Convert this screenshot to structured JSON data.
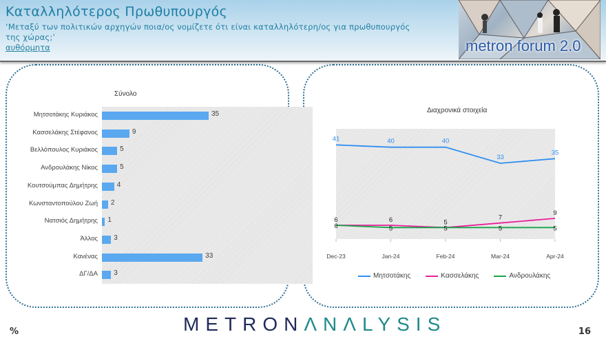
{
  "header": {
    "title": "Καταλληλότερος Πρωθυπουργός",
    "subtitle": "‘Μεταξύ των πολιτικών αρχηγών ποια/ος νομίζετε ότι είναι καταλληλότερη/ος για πρωθυπουργός της χώρας;’",
    "note": "αυθόρμητα",
    "logo_text": "metron forum 2.0"
  },
  "footer": {
    "unit": "%",
    "brand_part1": "METRON",
    "brand_part2": "ΛNΛLYSIS",
    "page_number": "16"
  },
  "colors": {
    "accent": "#1f7ea3",
    "bar": "#5aa8f0",
    "mitsotakis": "#2e8ff0",
    "kasselakis": "#e8219a",
    "androulakis": "#17a54a"
  },
  "chart_data": [
    {
      "type": "bar",
      "orientation": "horizontal",
      "title": "Σύνολο",
      "categories": [
        "Μητσοτάκης Κυριάκος",
        "Κασσελάκης Στέφανος",
        "Βελλόπουλος Κυριάκος",
        "Ανδρουλάκης Νίκος",
        "Κουτσούμπας Δημήτρης",
        "Κωνσταντοπούλου Ζωή",
        "Νατσιός Δημήτρης",
        "Άλλος",
        "Κανένας",
        "ΔΓ/ΔΑ"
      ],
      "values": [
        35,
        9,
        5,
        5,
        4,
        2,
        1,
        3,
        33,
        3
      ],
      "xlabel": "",
      "ylabel": "",
      "xlim": [
        0,
        40
      ],
      "grid": false
    },
    {
      "type": "line",
      "title": "Διαχρονικά στοιχεία",
      "x": [
        "Dec-23",
        "Jan-24",
        "Feb-24",
        "Mar-24",
        "Apr-24"
      ],
      "series": [
        {
          "name": "Μητσοτάκης",
          "values": [
            41,
            40,
            40,
            33,
            35
          ]
        },
        {
          "name": "Κασσελάκης",
          "values": [
            6,
            6,
            5,
            7,
            9
          ]
        },
        {
          "name": "Ανδρουλάκης",
          "values": [
            6,
            5,
            5,
            5,
            5
          ]
        }
      ],
      "legend_position": "bottom",
      "grid": false
    }
  ]
}
